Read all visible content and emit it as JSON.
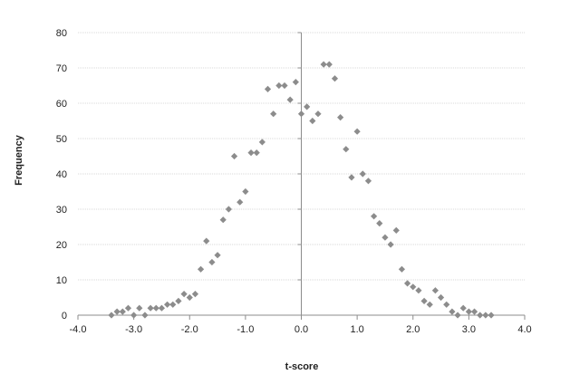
{
  "chart_data": {
    "type": "scatter",
    "title": "",
    "xlabel": "t-score",
    "ylabel": "Frequency",
    "xlim": [
      -4.0,
      4.0
    ],
    "ylim": [
      0,
      80
    ],
    "xticks": [
      -4.0,
      -3.0,
      -2.0,
      -1.0,
      0.0,
      1.0,
      2.0,
      3.0,
      4.0
    ],
    "xtick_labels": [
      "-4.0",
      "-3.0",
      "-2.0",
      "-1.0",
      "0.0",
      "1.0",
      "2.0",
      "3.0",
      "4.0"
    ],
    "yticks": [
      0,
      10,
      20,
      30,
      40,
      50,
      60,
      70,
      80
    ],
    "ytick_labels": [
      "0",
      "10",
      "20",
      "30",
      "40",
      "50",
      "60",
      "70",
      "80"
    ],
    "grid": "horizontal",
    "legend": "none",
    "marker": "diamond",
    "marker_color": "#8c8c8c",
    "series": [
      {
        "points": [
          [
            -3.4,
            0
          ],
          [
            -3.3,
            1
          ],
          [
            -3.2,
            1
          ],
          [
            -3.1,
            2
          ],
          [
            -3.0,
            0
          ],
          [
            -2.9,
            2
          ],
          [
            -2.8,
            0
          ],
          [
            -2.7,
            2
          ],
          [
            -2.6,
            2
          ],
          [
            -2.5,
            2
          ],
          [
            -2.4,
            3
          ],
          [
            -2.3,
            3
          ],
          [
            -2.2,
            4
          ],
          [
            -2.1,
            6
          ],
          [
            -2.0,
            5
          ],
          [
            -1.9,
            6
          ],
          [
            -1.8,
            13
          ],
          [
            -1.7,
            21
          ],
          [
            -1.6,
            15
          ],
          [
            -1.5,
            17
          ],
          [
            -1.4,
            27
          ],
          [
            -1.3,
            30
          ],
          [
            -1.2,
            45
          ],
          [
            -1.1,
            32
          ],
          [
            -1.0,
            35
          ],
          [
            -0.9,
            46
          ],
          [
            -0.8,
            46
          ],
          [
            -0.7,
            49
          ],
          [
            -0.6,
            64
          ],
          [
            -0.5,
            57
          ],
          [
            -0.4,
            65
          ],
          [
            -0.3,
            65
          ],
          [
            -0.2,
            61
          ],
          [
            -0.1,
            66
          ],
          [
            0.0,
            57
          ],
          [
            0.1,
            59
          ],
          [
            0.2,
            55
          ],
          [
            0.3,
            57
          ],
          [
            0.4,
            71
          ],
          [
            0.5,
            71
          ],
          [
            0.6,
            67
          ],
          [
            0.7,
            56
          ],
          [
            0.8,
            47
          ],
          [
            0.9,
            39
          ],
          [
            1.0,
            52
          ],
          [
            1.1,
            40
          ],
          [
            1.2,
            38
          ],
          [
            1.3,
            28
          ],
          [
            1.4,
            26
          ],
          [
            1.5,
            22
          ],
          [
            1.6,
            20
          ],
          [
            1.7,
            24
          ],
          [
            1.8,
            13
          ],
          [
            1.9,
            9
          ],
          [
            2.0,
            8
          ],
          [
            2.1,
            7
          ],
          [
            2.2,
            4
          ],
          [
            2.3,
            3
          ],
          [
            2.4,
            7
          ],
          [
            2.5,
            5
          ],
          [
            2.6,
            3
          ],
          [
            2.7,
            1
          ],
          [
            2.8,
            0
          ],
          [
            2.9,
            2
          ],
          [
            3.0,
            1
          ],
          [
            3.1,
            1
          ],
          [
            3.2,
            0
          ],
          [
            3.3,
            0
          ],
          [
            3.4,
            0
          ]
        ]
      }
    ]
  }
}
